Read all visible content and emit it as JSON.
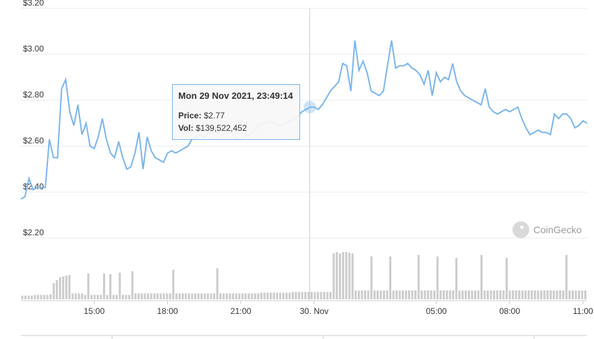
{
  "chart_data": {
    "type": "line",
    "x_labels": [
      "15:00",
      "18:00",
      "21:00",
      "30. Nov",
      "05:00",
      "08:00",
      "11:00"
    ],
    "y_ticks": [
      "$3.20",
      "$3.00",
      "$2.80",
      "$2.60",
      "$2.40",
      "$2.20"
    ],
    "ylim": [
      2.2,
      3.2
    ],
    "price_series": {
      "color": "#7cb5ec",
      "points": [
        [
          "12:00",
          2.37
        ],
        [
          "12:10",
          2.38
        ],
        [
          "12:20",
          2.46
        ],
        [
          "12:30",
          2.41
        ],
        [
          "12:40",
          2.42
        ],
        [
          "12:50",
          2.42
        ],
        [
          "13:00",
          2.42
        ],
        [
          "13:10",
          2.63
        ],
        [
          "13:20",
          2.55
        ],
        [
          "13:30",
          2.55
        ],
        [
          "13:40",
          2.85
        ],
        [
          "13:50",
          2.89
        ],
        [
          "14:00",
          2.75
        ],
        [
          "14:10",
          2.69
        ],
        [
          "14:20",
          2.78
        ],
        [
          "14:30",
          2.65
        ],
        [
          "14:40",
          2.7
        ],
        [
          "14:50",
          2.6
        ],
        [
          "15:00",
          2.59
        ],
        [
          "15:10",
          2.64
        ],
        [
          "15:20",
          2.72
        ],
        [
          "15:30",
          2.63
        ],
        [
          "15:40",
          2.57
        ],
        [
          "15:50",
          2.55
        ],
        [
          "16:00",
          2.62
        ],
        [
          "16:10",
          2.55
        ],
        [
          "16:20",
          2.5
        ],
        [
          "16:30",
          2.51
        ],
        [
          "16:40",
          2.57
        ],
        [
          "16:50",
          2.66
        ],
        [
          "17:00",
          2.5
        ],
        [
          "17:10",
          2.64
        ],
        [
          "17:20",
          2.58
        ],
        [
          "17:30",
          2.55
        ],
        [
          "17:40",
          2.54
        ],
        [
          "17:50",
          2.53
        ],
        [
          "18:00",
          2.57
        ],
        [
          "18:10",
          2.58
        ],
        [
          "18:20",
          2.57
        ],
        [
          "18:30",
          2.58
        ],
        [
          "18:40",
          2.59
        ],
        [
          "18:50",
          2.6
        ],
        [
          "19:00",
          2.63
        ],
        [
          "19:10",
          2.64
        ],
        [
          "19:20",
          2.65
        ],
        [
          "19:30",
          2.64
        ],
        [
          "19:40",
          2.66
        ],
        [
          "19:50",
          2.67
        ],
        [
          "20:00",
          2.68
        ],
        [
          "20:10",
          2.69
        ],
        [
          "20:20",
          2.68
        ],
        [
          "20:30",
          2.67
        ],
        [
          "20:40",
          2.65
        ],
        [
          "20:50",
          2.63
        ],
        [
          "21:00",
          2.63
        ],
        [
          "21:10",
          2.64
        ],
        [
          "21:20",
          2.65
        ],
        [
          "21:30",
          2.66
        ],
        [
          "21:40",
          2.68
        ],
        [
          "21:50",
          2.7
        ],
        [
          "22:00",
          2.7
        ],
        [
          "22:10",
          2.71
        ],
        [
          "22:20",
          2.7
        ],
        [
          "22:30",
          2.69
        ],
        [
          "22:40",
          2.69
        ],
        [
          "22:50",
          2.7
        ],
        [
          "23:00",
          2.71
        ],
        [
          "23:10",
          2.72
        ],
        [
          "23:20",
          2.73
        ],
        [
          "23:30",
          2.75
        ],
        [
          "23:40",
          2.76
        ],
        [
          "23:50",
          2.77
        ],
        [
          "00:00",
          2.77
        ],
        [
          "00:10",
          2.76
        ],
        [
          "00:20",
          2.78
        ],
        [
          "00:30",
          2.81
        ],
        [
          "00:40",
          2.84
        ],
        [
          "00:50",
          2.86
        ],
        [
          "01:00",
          2.88
        ],
        [
          "01:10",
          2.96
        ],
        [
          "01:20",
          2.95
        ],
        [
          "01:30",
          2.84
        ],
        [
          "01:40",
          3.06
        ],
        [
          "01:50",
          2.93
        ],
        [
          "02:00",
          2.97
        ],
        [
          "02:10",
          2.92
        ],
        [
          "02:20",
          2.84
        ],
        [
          "02:30",
          2.83
        ],
        [
          "02:40",
          2.82
        ],
        [
          "02:50",
          2.84
        ],
        [
          "03:00",
          2.95
        ],
        [
          "03:10",
          3.06
        ],
        [
          "03:20",
          2.94
        ],
        [
          "03:30",
          2.95
        ],
        [
          "03:40",
          2.95
        ],
        [
          "03:50",
          2.96
        ],
        [
          "04:00",
          2.94
        ],
        [
          "04:10",
          2.93
        ],
        [
          "04:20",
          2.91
        ],
        [
          "04:30",
          2.87
        ],
        [
          "04:40",
          2.93
        ],
        [
          "04:50",
          2.82
        ],
        [
          "05:00",
          2.92
        ],
        [
          "05:10",
          2.88
        ],
        [
          "05:20",
          2.9
        ],
        [
          "05:30",
          2.89
        ],
        [
          "05:40",
          2.96
        ],
        [
          "05:50",
          2.88
        ],
        [
          "06:00",
          2.84
        ],
        [
          "06:10",
          2.82
        ],
        [
          "06:20",
          2.81
        ],
        [
          "06:30",
          2.8
        ],
        [
          "06:40",
          2.79
        ],
        [
          "06:50",
          2.78
        ],
        [
          "07:00",
          2.85
        ],
        [
          "07:10",
          2.77
        ],
        [
          "07:20",
          2.75
        ],
        [
          "07:30",
          2.74
        ],
        [
          "07:40",
          2.75
        ],
        [
          "07:50",
          2.76
        ],
        [
          "08:00",
          2.75
        ],
        [
          "08:10",
          2.76
        ],
        [
          "08:20",
          2.77
        ],
        [
          "08:30",
          2.72
        ],
        [
          "08:40",
          2.68
        ],
        [
          "08:50",
          2.65
        ],
        [
          "09:00",
          2.66
        ],
        [
          "09:10",
          2.67
        ],
        [
          "09:20",
          2.66
        ],
        [
          "09:30",
          2.66
        ],
        [
          "09:40",
          2.65
        ],
        [
          "09:50",
          2.74
        ],
        [
          "10:00",
          2.72
        ],
        [
          "10:10",
          2.74
        ],
        [
          "10:20",
          2.74
        ],
        [
          "10:30",
          2.72
        ],
        [
          "10:40",
          2.68
        ],
        [
          "10:50",
          2.69
        ],
        [
          "11:00",
          2.71
        ],
        [
          "11:10",
          2.7
        ]
      ]
    },
    "volume_bars": {
      "color": "#cccccc",
      "values": [
        5,
        5,
        5,
        5,
        6,
        6,
        6,
        6,
        6,
        7,
        22,
        26,
        30,
        31,
        32,
        33,
        8,
        8,
        8,
        8,
        6,
        35,
        6,
        6,
        6,
        6,
        35,
        6,
        34,
        6,
        6,
        36,
        6,
        6,
        6,
        38,
        8,
        8,
        8,
        8,
        8,
        8,
        8,
        8,
        8,
        8,
        8,
        8,
        40,
        8,
        8,
        8,
        8,
        8,
        8,
        8,
        8,
        8,
        8,
        8,
        8,
        8,
        42,
        8,
        8,
        8,
        8,
        8,
        8,
        8,
        8,
        8,
        8,
        8,
        8,
        8,
        9,
        9,
        9,
        9,
        9,
        9,
        9,
        9,
        9,
        9,
        10,
        10,
        10,
        10,
        10,
        10,
        10,
        10,
        10,
        10,
        10,
        10,
        10,
        62,
        64,
        62,
        64,
        64,
        63,
        62,
        12,
        12,
        12,
        12,
        12,
        58,
        12,
        12,
        12,
        12,
        12,
        58,
        12,
        12,
        12,
        12,
        12,
        12,
        12,
        12,
        60,
        12,
        12,
        12,
        12,
        12,
        58,
        12,
        12,
        12,
        12,
        12,
        56,
        12,
        12,
        12,
        12,
        12,
        12,
        12,
        60,
        12,
        12,
        12,
        12,
        12,
        12,
        12,
        56,
        12,
        12,
        12,
        12,
        12,
        12,
        12,
        12,
        12,
        12,
        12,
        12,
        12,
        12,
        12,
        12,
        12,
        12,
        60,
        12,
        12,
        12,
        12,
        12,
        12
      ]
    },
    "crosshair": "23:49:14",
    "tooltip": {
      "title": "Mon 29 Nov 2021, 23:49:14",
      "price_label": "Price:",
      "price_value": "$2.77",
      "vol_label": "Vol:",
      "vol_value": "$139,522,452"
    },
    "grid": true,
    "legend": "none"
  },
  "watermark": {
    "text": "CoinGecko"
  }
}
